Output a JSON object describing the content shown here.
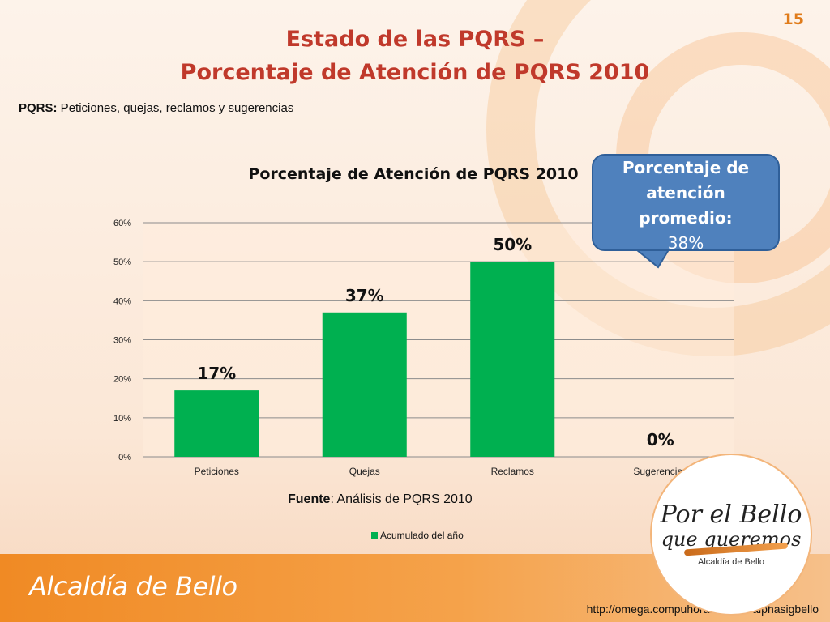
{
  "slide": {
    "page_number": "15",
    "title_line1": "Estado de las PQRS –",
    "title_line2": "Porcentaje de Atención de PQRS 2010",
    "definition_term": "PQRS:",
    "definition_text": " Peticiones, quejas, reclamos y sugerencias",
    "source_label": "Fuente",
    "source_text": ": Análisis de PQRS 2010",
    "url": "http://omega.compuhora.com.co/alphasigbello",
    "brand": "Alcaldía de Bello",
    "logo_line1": "Por el Bello",
    "logo_line2": "que queremos",
    "logo_line3": "Alcaldía de Bello"
  },
  "callout": {
    "title_line1": "Porcentaje de",
    "title_line2": "atención",
    "title_line3": "promedio:",
    "value": "38%"
  },
  "colors": {
    "bar": "#00b050",
    "title": "#c0392b",
    "callout_bg": "#4f81bd",
    "footer": "#f08a24"
  },
  "chart_data": {
    "type": "bar",
    "title": "Porcentaje de Atención de PQRS 2010",
    "categories": [
      "Peticiones",
      "Quejas",
      "Reclamos",
      "Sugerencias"
    ],
    "series": [
      {
        "name": "Acumulado del año",
        "values": [
          17,
          37,
          50,
          0
        ]
      }
    ],
    "data_labels": [
      "17%",
      "37%",
      "50%",
      "0%"
    ],
    "y_ticks": [
      "0%",
      "10%",
      "20%",
      "30%",
      "40%",
      "50%",
      "60%"
    ],
    "ylim": [
      0,
      60
    ],
    "grid": true,
    "legend": "bottom-center"
  }
}
